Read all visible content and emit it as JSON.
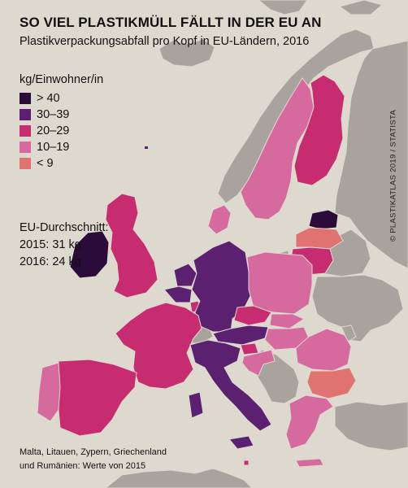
{
  "title": "SO VIEL PLASTIKMÜLL FÄLLT IN DER EU AN",
  "subtitle": "Plastikverpackungsabfall pro Kopf in EU-Ländern, 2016",
  "legend": {
    "title": "kg/Einwohner/in",
    "items": [
      {
        "label": "> 40",
        "color": "#2b0b3a"
      },
      {
        "label": "30–39",
        "color": "#5b2170"
      },
      {
        "label": "20–29",
        "color": "#c62c6f"
      },
      {
        "label": "10–19",
        "color": "#d66a9e"
      },
      {
        "label": "< 9",
        "color": "#e07272"
      }
    ]
  },
  "eu_average": {
    "heading": "EU-Durchschnitt:",
    "line_2015": "2015: 31 kg",
    "line_2016": "2016: 24 kg"
  },
  "note": {
    "line1": "Malta, Litauen, Zypern, Griechenland",
    "line2": "und Rumänien: Werte von 2015"
  },
  "source": "© PLASTIKATLAS 2019 / STATISTA",
  "colors": {
    "background": "#ded9cf",
    "non_eu_land": "#a8a39c",
    "border": "#ded9cf"
  }
}
